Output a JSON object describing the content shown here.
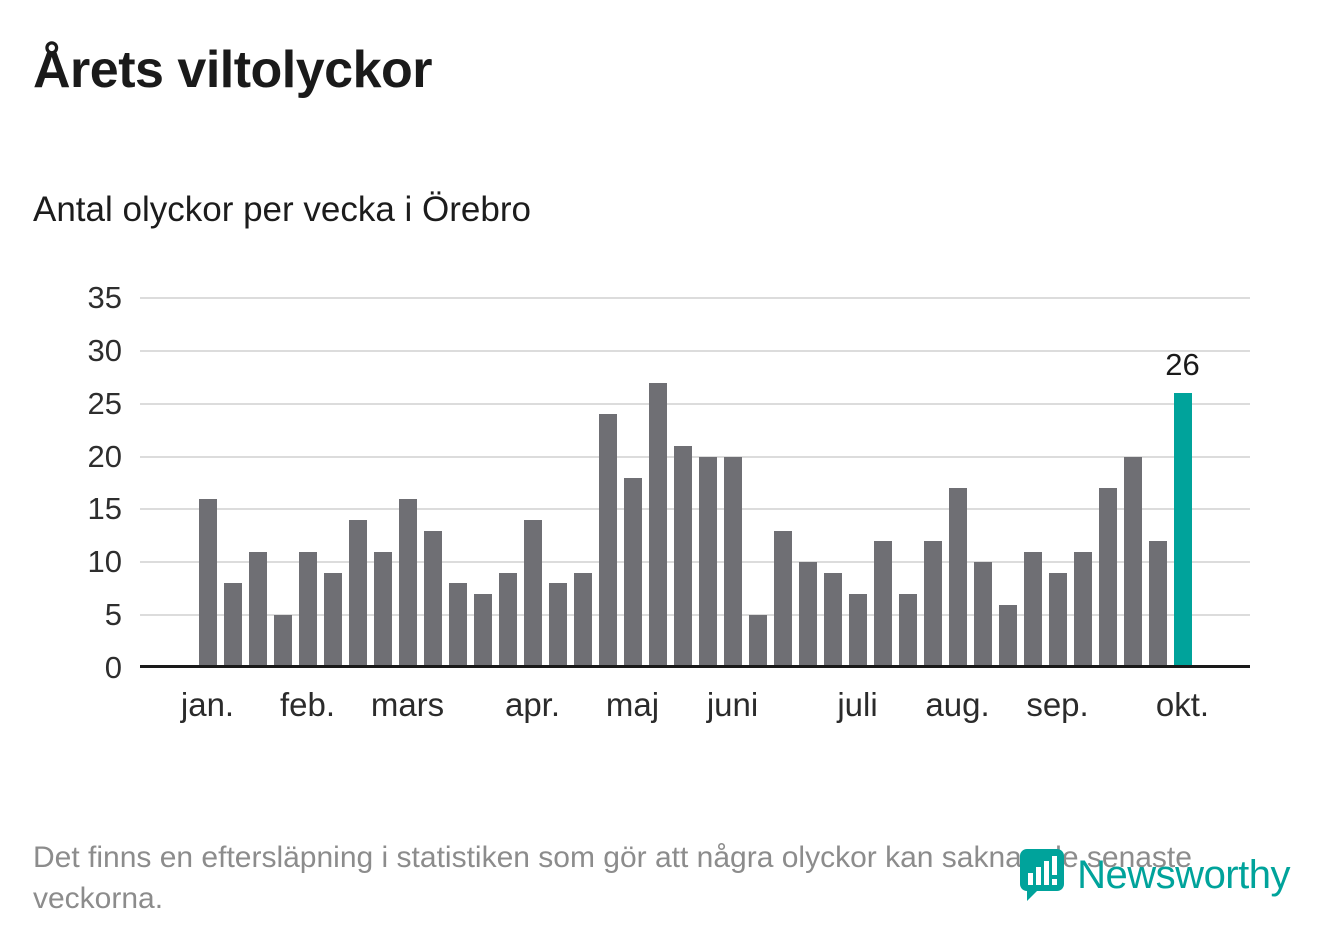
{
  "chart_data": {
    "type": "bar",
    "title": "Årets viltolyckor",
    "subtitle": "Antal olyckor per vecka i Örebro",
    "x_unit": "vecka",
    "values": [
      16,
      8,
      11,
      5,
      11,
      9,
      14,
      11,
      16,
      13,
      8,
      7,
      9,
      14,
      8,
      9,
      24,
      18,
      27,
      21,
      20,
      20,
      5,
      13,
      10,
      9,
      7,
      12,
      7,
      12,
      17,
      10,
      6,
      11,
      9,
      11,
      17,
      20,
      12,
      26
    ],
    "yticks": [
      0,
      5,
      10,
      15,
      20,
      25,
      30,
      35
    ],
    "ylim": [
      0,
      35
    ],
    "grid": "horizontal",
    "legend": "none",
    "bar_color": "#6f6f74",
    "axis_color": "#1a1a1a",
    "gridline_color": "#dcdcdc",
    "month_ticks": [
      {
        "label": "jan.",
        "index": 0
      },
      {
        "label": "feb.",
        "index": 4
      },
      {
        "label": "mars",
        "index": 8
      },
      {
        "label": "apr.",
        "index": 13
      },
      {
        "label": "maj",
        "index": 17
      },
      {
        "label": "juni",
        "index": 21
      },
      {
        "label": "juli",
        "index": 26
      },
      {
        "label": "aug.",
        "index": 30
      },
      {
        "label": "sep.",
        "index": 34
      },
      {
        "label": "okt.",
        "index": 39
      }
    ],
    "highlight": {
      "index": 39,
      "value": 26,
      "label": "26",
      "color": "#00a39b"
    }
  },
  "footnote": {
    "text": "Det finns en eftersläpning i statistiken som gör att några olyckor kan saknas de senaste veckorna."
  },
  "logo": {
    "text": "Newsworthy",
    "color": "#00a39b",
    "icon": "newsworthy-chart-bubble-icon"
  }
}
